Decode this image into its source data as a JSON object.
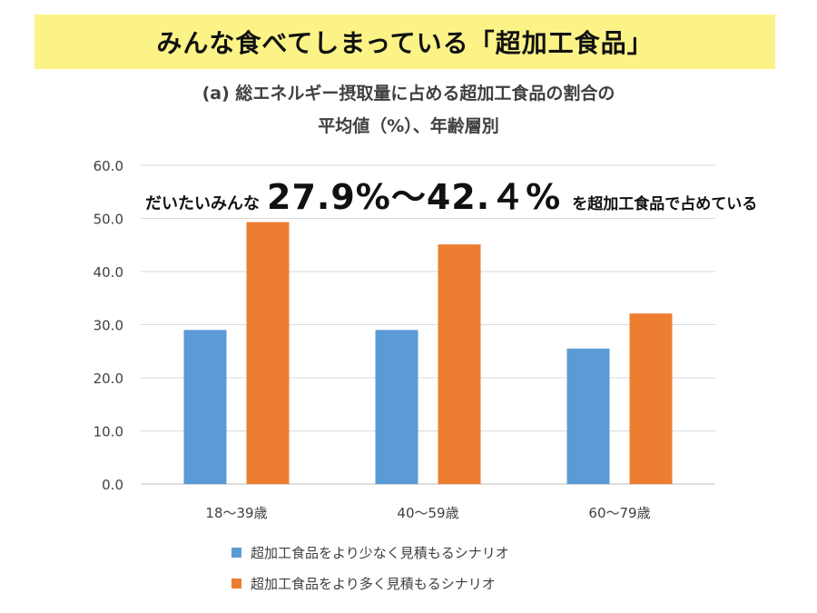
{
  "banner": {
    "title": "みんな食べてしまっている「超加工食品」"
  },
  "callout": {
    "lead": "だいたいみんな",
    "range": "27.9%〜42.４%",
    "tail": "を超加工食品で占めている"
  },
  "chart_data": {
    "type": "bar",
    "title_line1": "(a) 総エネルギー摂取量に占める超加工食品の割合の",
    "title_line2": "平均値（%）、年齢層別",
    "categories": [
      "18〜39歳",
      "40〜59歳",
      "60〜79歳"
    ],
    "series": [
      {
        "name": "超加工食品をより少なく見積もるシナリオ",
        "color": "#5b9bd5",
        "values": [
          29.0,
          29.0,
          25.5
        ]
      },
      {
        "name": "超加工食品をより多く見積もるシナリオ",
        "color": "#ed7d31",
        "values": [
          49.3,
          45.1,
          32.1
        ]
      }
    ],
    "ylim": [
      0,
      60
    ],
    "yticks": [
      "0.0",
      "10.0",
      "20.0",
      "30.0",
      "40.0",
      "50.0",
      "60.0"
    ],
    "grid": true,
    "legend_position": "bottom"
  }
}
